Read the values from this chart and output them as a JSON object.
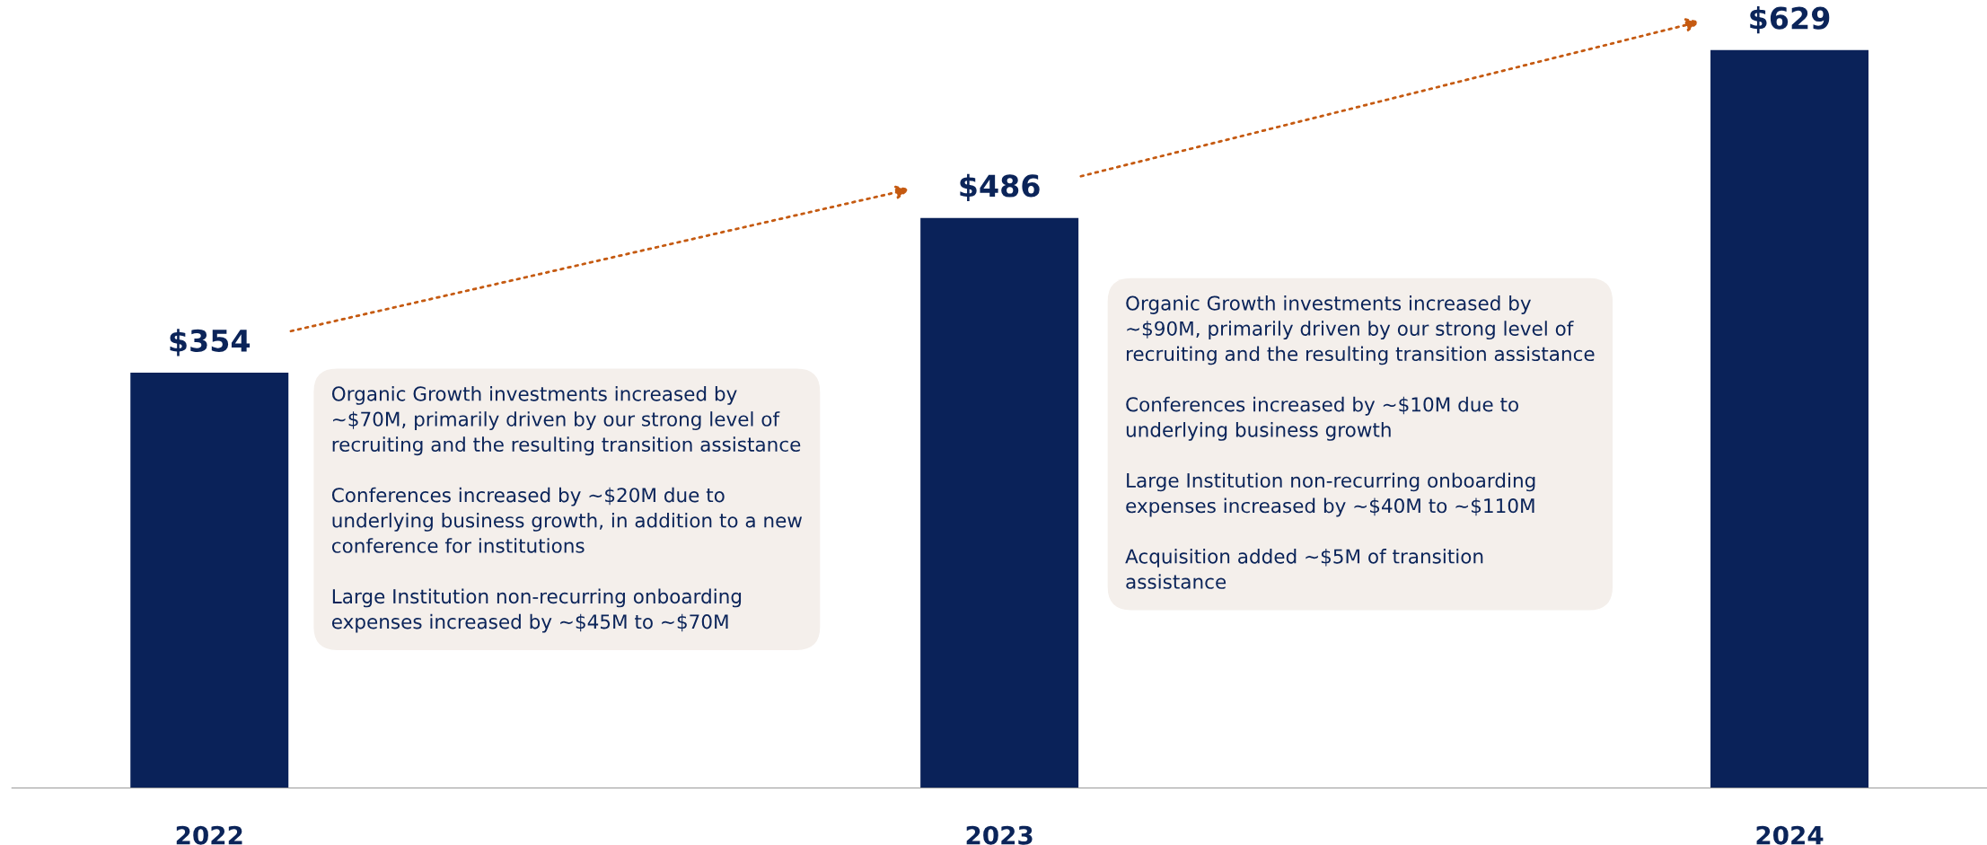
{
  "chart_data": {
    "type": "bar",
    "categories": [
      "2022",
      "2023",
      "2024"
    ],
    "values": [
      354,
      486,
      629
    ],
    "value_labels": [
      "$354",
      "$486",
      "$629"
    ],
    "color": "#0a2259",
    "annotations": [
      "Organic Growth investments increased by\n~$70M, primarily driven by our strong level of\nrecruiting and the resulting transition assistance\n\nConferences increased by ~$20M due to\nunderlying business growth, in addition to a new\nconference for institutions\n\nLarge Institution non-recurring onboarding\nexpenses increased by ~$45M to ~$70M",
      "Organic Growth investments increased by\n~$90M, primarily driven by our strong level of\nrecruiting and the resulting transition assistance\n\nConferences increased by ~$10M due to\nunderlying business growth\n\nLarge Institution non-recurring onboarding\nexpenses increased by ~$40M to ~$110M\n\nAcquisition added ~$5M of transition\nassistance"
    ]
  }
}
